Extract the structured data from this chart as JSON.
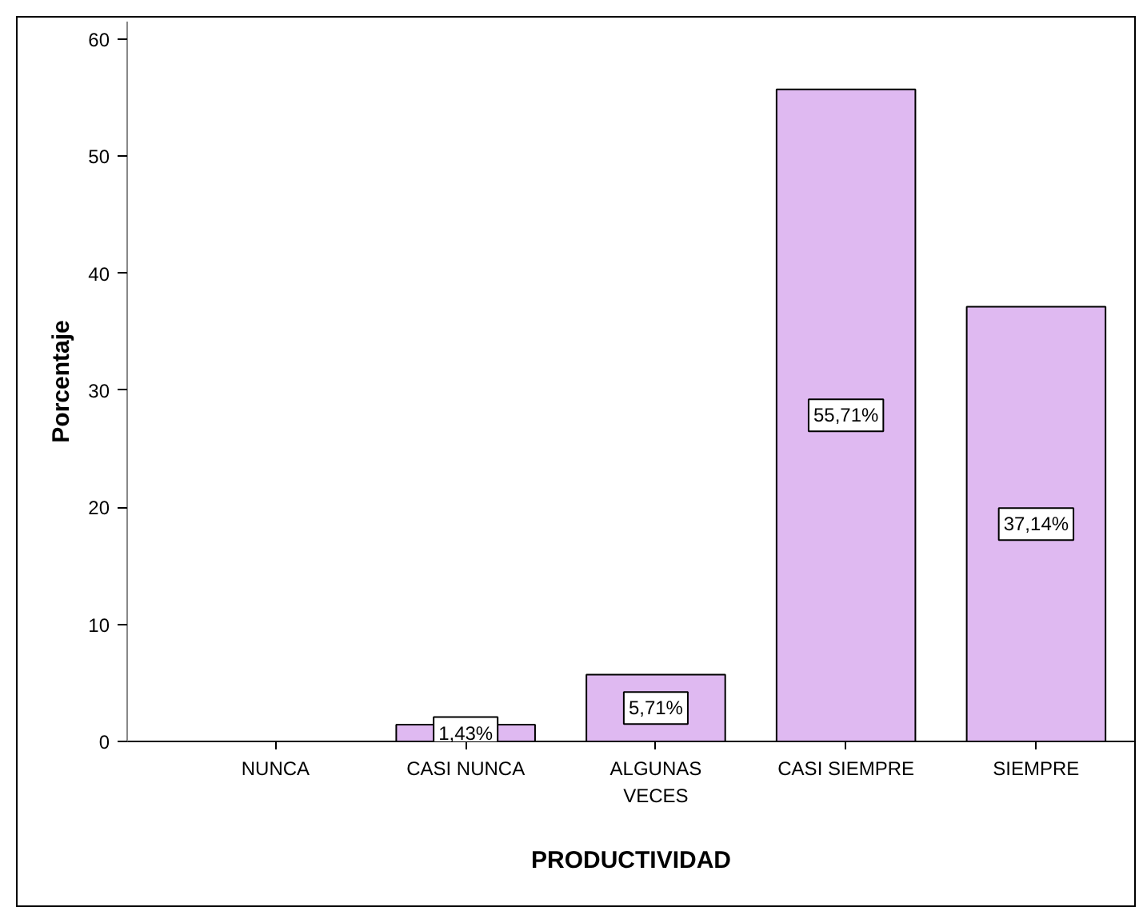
{
  "chart_data": {
    "type": "bar",
    "xlabel": "PRODUCTIVIDAD",
    "ylabel": "Porcentaje",
    "categories": [
      "NUNCA",
      "CASI NUNCA",
      "ALGUNAS\nVECES",
      "CASI SIEMPRE",
      "SIEMPRE"
    ],
    "values": [
      null,
      1.43,
      5.71,
      55.71,
      37.14
    ],
    "value_labels": [
      null,
      "1,43%",
      "5,71%",
      "55,71%",
      "37,14%"
    ],
    "color": "#dfb9f1",
    "ylim": [
      0,
      61.5
    ],
    "yticks": [
      0,
      10,
      20,
      30,
      40,
      50,
      60
    ],
    "grid": false
  }
}
